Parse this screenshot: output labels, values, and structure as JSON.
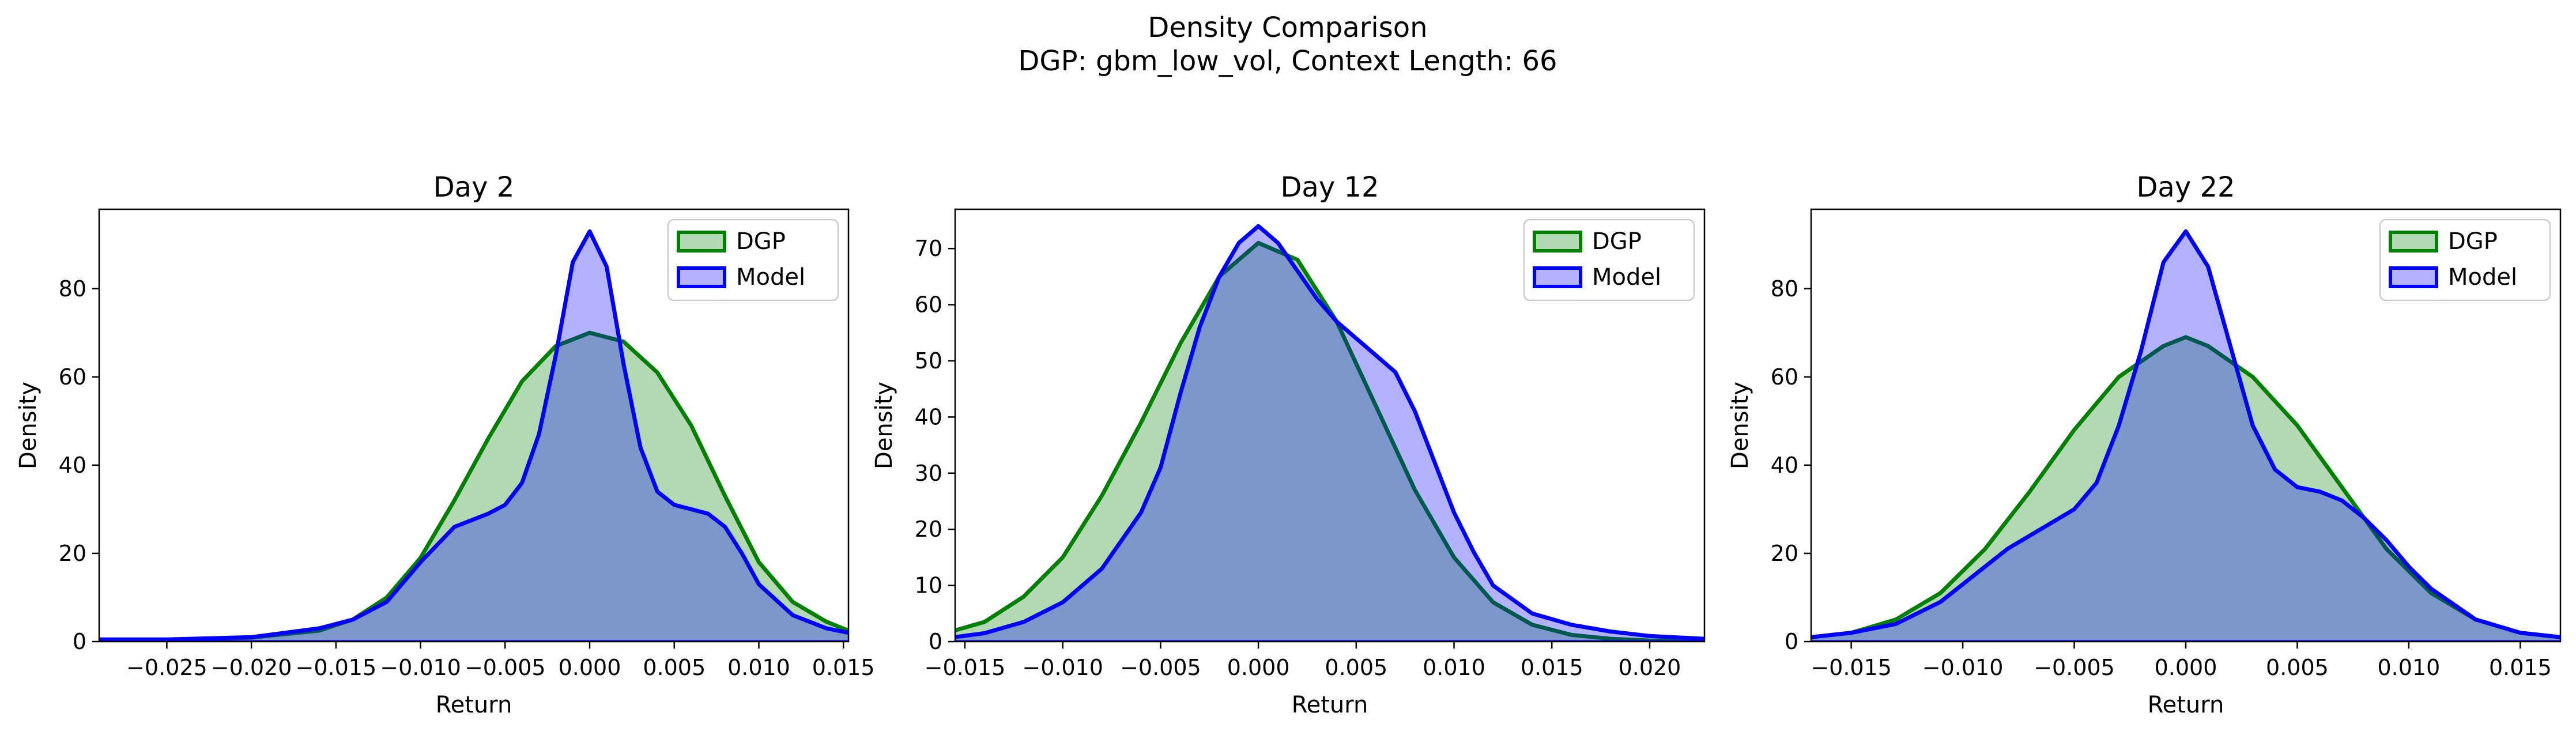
{
  "figure": {
    "suptitle_line1": "Density Comparison",
    "suptitle_line2": "DGP: gbm_low_vol, Context Length: 66"
  },
  "colors": {
    "dgp_line": "#008000",
    "dgp_fill": "#008000",
    "model_line": "#0000ff",
    "model_fill": "#0000ff",
    "axes": "#000000"
  },
  "chart_data": [
    {
      "type": "area",
      "title": "Day 2",
      "xlabel": "Return",
      "ylabel": "Density",
      "xlim": [
        -0.029,
        0.0153
      ],
      "ylim": [
        0,
        98
      ],
      "xticks": [
        -0.025,
        -0.02,
        -0.015,
        -0.01,
        -0.005,
        0.0,
        0.005,
        0.01,
        0.015
      ],
      "xtick_labels": [
        "−0.025",
        "−0.020",
        "−0.015",
        "−0.010",
        "−0.005",
        "0.000",
        "0.005",
        "0.010",
        "0.015"
      ],
      "yticks": [
        0,
        20,
        40,
        60,
        80
      ],
      "ytick_labels": [
        "0",
        "20",
        "40",
        "60",
        "80"
      ],
      "legend": "top-right",
      "series": [
        {
          "name": "DGP",
          "color": "#008000",
          "x": [
            -0.029,
            -0.025,
            -0.02,
            -0.016,
            -0.014,
            -0.012,
            -0.01,
            -0.008,
            -0.006,
            -0.004,
            -0.002,
            0.0,
            0.002,
            0.004,
            0.006,
            0.008,
            0.01,
            0.012,
            0.014,
            0.0153
          ],
          "y": [
            0.3,
            0.4,
            0.9,
            2.5,
            5,
            10,
            19,
            32,
            46,
            59,
            67,
            70,
            68,
            61,
            49,
            33,
            18,
            9,
            4.5,
            2.5
          ]
        },
        {
          "name": "Model",
          "color": "#0000ff",
          "x": [
            -0.029,
            -0.025,
            -0.02,
            -0.016,
            -0.014,
            -0.012,
            -0.01,
            -0.008,
            -0.006,
            -0.005,
            -0.004,
            -0.003,
            -0.002,
            -0.001,
            0.0,
            0.001,
            0.002,
            0.003,
            0.004,
            0.005,
            0.006,
            0.007,
            0.008,
            0.009,
            0.01,
            0.012,
            0.014,
            0.0153
          ],
          "y": [
            0.5,
            0.5,
            1,
            3,
            5,
            9,
            18,
            26,
            29,
            31,
            36,
            47,
            65,
            86,
            93,
            85,
            63,
            44,
            34,
            31,
            30,
            29,
            26,
            20,
            13,
            6,
            3,
            2
          ]
        }
      ]
    },
    {
      "type": "area",
      "title": "Day 12",
      "xlabel": "Return",
      "ylabel": "Density",
      "xlim": [
        -0.0155,
        0.0228
      ],
      "ylim": [
        0,
        77
      ],
      "xticks": [
        -0.015,
        -0.01,
        -0.005,
        0.0,
        0.005,
        0.01,
        0.015,
        0.02
      ],
      "xtick_labels": [
        "−0.015",
        "−0.010",
        "−0.005",
        "0.000",
        "0.005",
        "0.010",
        "0.015",
        "0.020"
      ],
      "yticks": [
        0,
        10,
        20,
        30,
        40,
        50,
        60,
        70
      ],
      "ytick_labels": [
        "0",
        "10",
        "20",
        "30",
        "40",
        "50",
        "60",
        "70"
      ],
      "legend": "top-right",
      "series": [
        {
          "name": "DGP",
          "color": "#008000",
          "x": [
            -0.0155,
            -0.014,
            -0.012,
            -0.01,
            -0.008,
            -0.006,
            -0.004,
            -0.002,
            0.0,
            0.002,
            0.004,
            0.006,
            0.008,
            0.01,
            0.012,
            0.014,
            0.016,
            0.018,
            0.02,
            0.0228
          ],
          "y": [
            2,
            3.5,
            8,
            15,
            26,
            39,
            53,
            65,
            71,
            68,
            57,
            42,
            27,
            15,
            7,
            3,
            1.2,
            0.5,
            0.2,
            0.1
          ]
        },
        {
          "name": "Model",
          "color": "#0000ff",
          "x": [
            -0.0155,
            -0.014,
            -0.012,
            -0.01,
            -0.008,
            -0.006,
            -0.005,
            -0.004,
            -0.003,
            -0.002,
            -0.001,
            0.0,
            0.001,
            0.002,
            0.003,
            0.004,
            0.005,
            0.006,
            0.007,
            0.008,
            0.009,
            0.01,
            0.011,
            0.012,
            0.014,
            0.016,
            0.018,
            0.02,
            0.0228
          ],
          "y": [
            0.8,
            1.5,
            3.5,
            7,
            13,
            23,
            31,
            44,
            56,
            65,
            71,
            74,
            71,
            66,
            61,
            57,
            54,
            51,
            48,
            41,
            32,
            23,
            16,
            10,
            5,
            3,
            1.8,
            1,
            0.5
          ]
        }
      ]
    },
    {
      "type": "area",
      "title": "Day 22",
      "xlabel": "Return",
      "ylabel": "Density",
      "xlim": [
        -0.0168,
        0.0168
      ],
      "ylim": [
        0,
        98
      ],
      "xticks": [
        -0.015,
        -0.01,
        -0.005,
        0.0,
        0.005,
        0.01,
        0.015
      ],
      "xtick_labels": [
        "−0.015",
        "−0.010",
        "−0.005",
        "0.000",
        "0.005",
        "0.010",
        "0.015"
      ],
      "yticks": [
        0,
        20,
        40,
        60,
        80
      ],
      "ytick_labels": [
        "0",
        "20",
        "40",
        "60",
        "80"
      ],
      "legend": "top-right",
      "series": [
        {
          "name": "DGP",
          "color": "#008000",
          "x": [
            -0.0168,
            -0.015,
            -0.013,
            -0.011,
            -0.009,
            -0.007,
            -0.005,
            -0.003,
            -0.001,
            0.0,
            0.001,
            0.003,
            0.005,
            0.007,
            0.009,
            0.011,
            0.013,
            0.015,
            0.0168
          ],
          "y": [
            1,
            2,
            5,
            11,
            21,
            34,
            48,
            60,
            67,
            69,
            67,
            60,
            49,
            35,
            21,
            11,
            5,
            2,
            1
          ]
        },
        {
          "name": "Model",
          "color": "#0000ff",
          "x": [
            -0.0168,
            -0.015,
            -0.013,
            -0.011,
            -0.009,
            -0.008,
            -0.007,
            -0.006,
            -0.005,
            -0.004,
            -0.003,
            -0.002,
            -0.001,
            0.0,
            0.001,
            0.002,
            0.003,
            0.004,
            0.005,
            0.006,
            0.007,
            0.008,
            0.009,
            0.01,
            0.011,
            0.013,
            0.015,
            0.0168
          ],
          "y": [
            1,
            2,
            4,
            9,
            17,
            21,
            24,
            27,
            30,
            36,
            49,
            66,
            86,
            93,
            85,
            67,
            49,
            39,
            35,
            34,
            32,
            28,
            23,
            17,
            12,
            5,
            2,
            1
          ]
        }
      ]
    }
  ]
}
